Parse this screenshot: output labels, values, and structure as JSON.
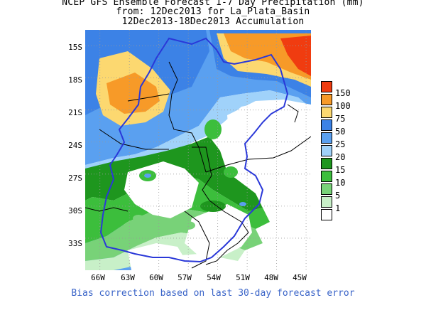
{
  "title": {
    "line1": "NCEP GFS Ensemble Forecast 1-7 Day Precipitation (mm)",
    "line2": "from: 12Dec2013   for La_Plata_Basin",
    "line3": "12Dec2013-18Dec2013 Accumulation"
  },
  "axes": {
    "lat_labels": [
      "15S",
      "18S",
      "21S",
      "24S",
      "27S",
      "30S",
      "33S"
    ],
    "lon_labels": [
      "66W",
      "63W",
      "60W",
      "57W",
      "54W",
      "51W",
      "48W",
      "45W"
    ],
    "lat_range": [
      -36,
      -13.5
    ],
    "lon_range": [
      -67.5,
      -44.5
    ],
    "grid": "dotted"
  },
  "legend": {
    "placement": "right",
    "levels": [
      {
        "label": "150",
        "color": "#f03c10"
      },
      {
        "label": "100",
        "color": "#f79a28"
      },
      {
        "label": "75",
        "color": "#fcd870"
      },
      {
        "label": "50",
        "color": "#3c82e6"
      },
      {
        "label": "25",
        "color": "#5aa0f0"
      },
      {
        "label": "20",
        "color": "#a0d2fa"
      },
      {
        "label": "15",
        "color": "#1e961e"
      },
      {
        "label": "10",
        "color": "#3cbe3c"
      },
      {
        "label": "5",
        "color": "#78d278"
      },
      {
        "label": "1",
        "color": "#c8f0c8"
      },
      {
        "label": "",
        "color": "#ffffff"
      }
    ]
  },
  "colors": {
    "basin_outline": "#2a38d8",
    "borders": "#000000",
    "footer_text": "#3a64c8"
  },
  "footer": "Bias correction based on last 30-day forecast error"
}
